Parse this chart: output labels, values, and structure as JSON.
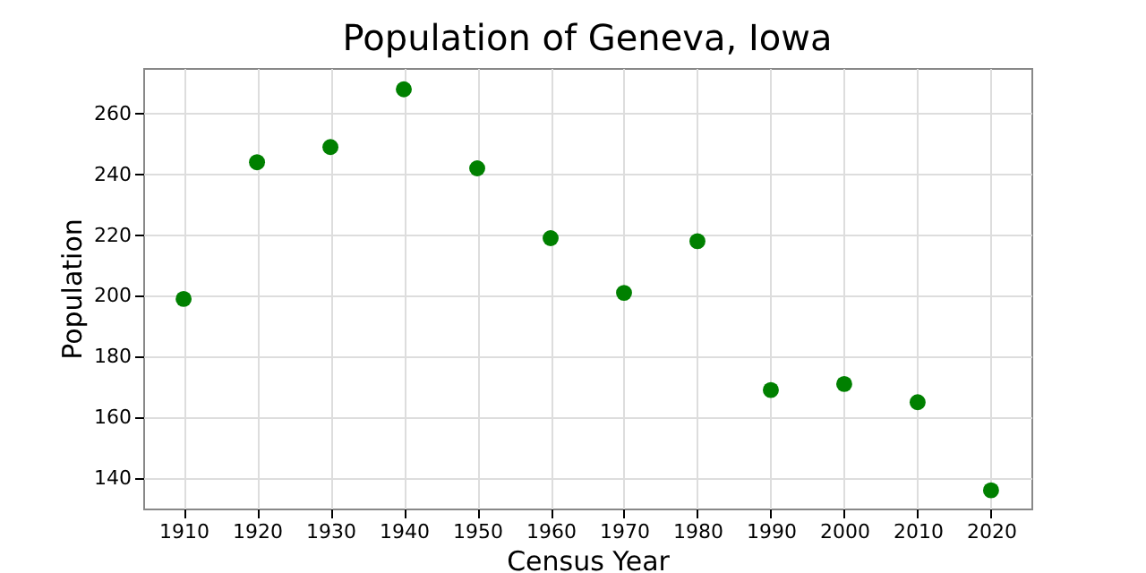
{
  "chart_data": {
    "type": "scatter",
    "title": "Population of Geneva, Iowa",
    "xlabel": "Census Year",
    "ylabel": "Population",
    "x": [
      1910,
      1920,
      1930,
      1940,
      1950,
      1960,
      1970,
      1980,
      1990,
      2000,
      2010,
      2020
    ],
    "series": [
      {
        "color": "#008000",
        "values": [
          199,
          244,
          249,
          268,
          242,
          219,
          201,
          218,
          169,
          171,
          165,
          136
        ]
      }
    ],
    "xlim": [
      1904.5,
      2025.5
    ],
    "xticks": [
      1910,
      1920,
      1930,
      1940,
      1950,
      1960,
      1970,
      1980,
      1990,
      2000,
      2010,
      2020
    ],
    "ylim": [
      130,
      275
    ],
    "yticks": [
      140,
      160,
      180,
      200,
      220,
      240,
      260
    ],
    "grid": true,
    "marker": "circle"
  }
}
